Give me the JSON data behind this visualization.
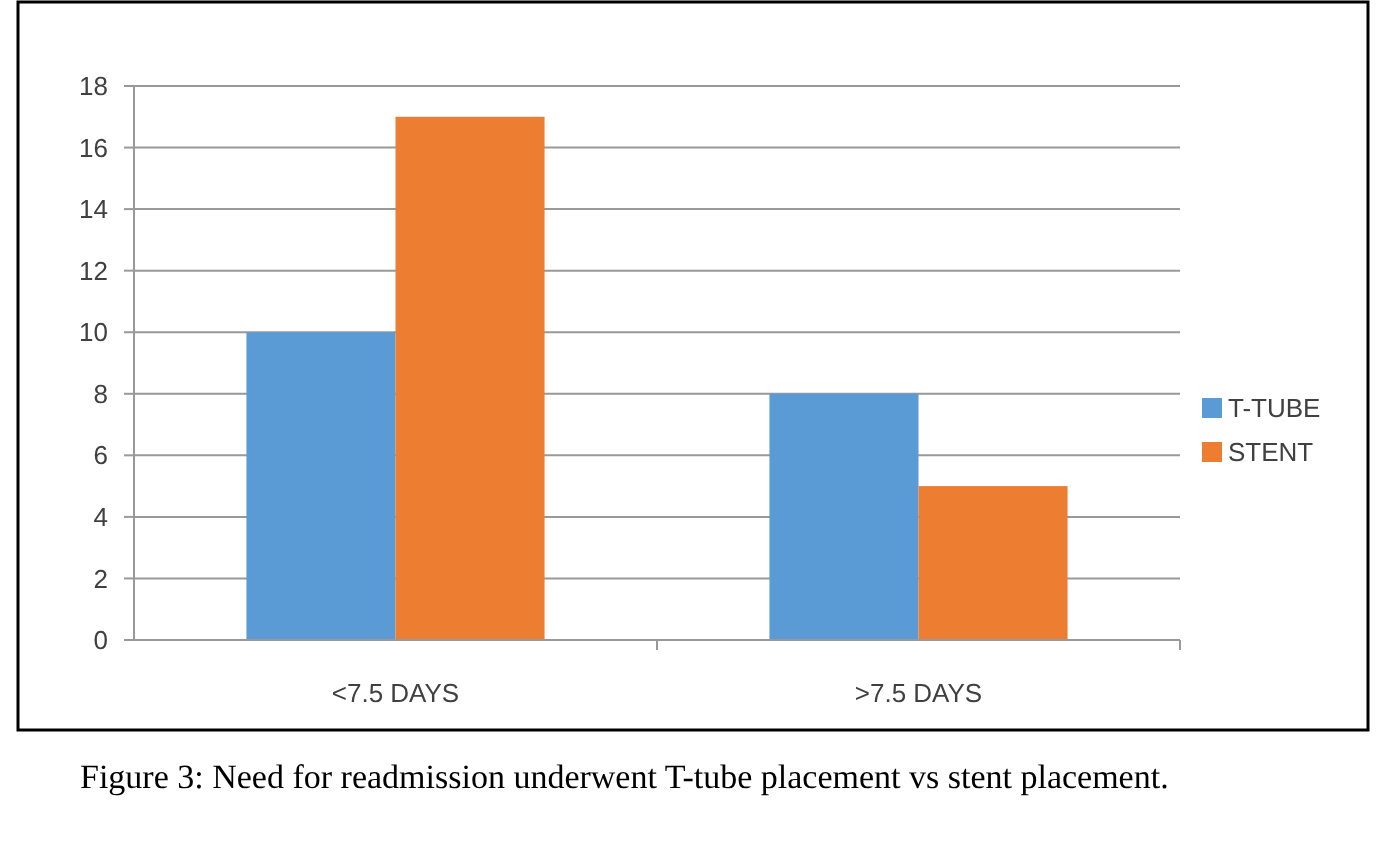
{
  "chart_data": {
    "type": "bar",
    "categories": [
      "<7.5 DAYS",
      ">7.5 DAYS"
    ],
    "series": [
      {
        "name": "T-TUBE",
        "color": "#5b9bd5",
        "values": [
          10,
          8
        ]
      },
      {
        "name": "STENT",
        "color": "#ed7d31",
        "values": [
          17,
          5
        ]
      }
    ],
    "ylim": [
      0,
      18
    ],
    "yticks": [
      0,
      2,
      4,
      6,
      8,
      10,
      12,
      14,
      16,
      18
    ],
    "grid": "y",
    "legend": "right",
    "annotations": [
      "Figure 3: Need for readmission underwent T-tube placement vs stent placement."
    ]
  }
}
